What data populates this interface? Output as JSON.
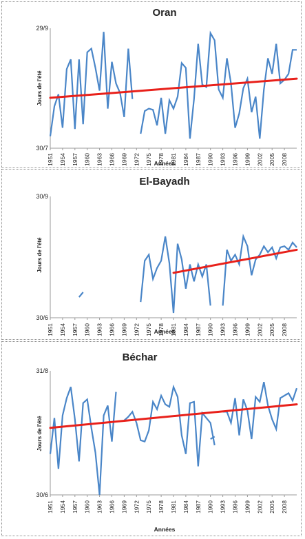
{
  "chart_data": [
    {
      "type": "line",
      "title": "Oran",
      "ylabel": "Jours de l'été",
      "xlabel": "Années",
      "y_ticks": [
        "29/9",
        "30/7"
      ],
      "ylim": [
        0,
        100
      ],
      "x_ticks": [
        "1951",
        "1954",
        "1957",
        "1960",
        "1963",
        "1966",
        "1969",
        "1972",
        "1975",
        "1978",
        "1981",
        "1984",
        "1987",
        "1990",
        "1993",
        "1996",
        "1999",
        "2002",
        "2005",
        "2008"
      ],
      "x_range": [
        1951,
        2011
      ],
      "colors": {
        "series": "#4a86c8",
        "trend": "#e8201a"
      },
      "series": [
        {
          "x": [
            1951,
            1952,
            1953,
            1954,
            1955,
            1956,
            1957,
            1958,
            1959,
            1960,
            1961,
            1962,
            1963,
            1964,
            1965,
            1966,
            1967,
            1968,
            1969,
            1970
          ],
          "values": [
            10,
            35,
            45,
            17,
            66,
            74,
            16,
            74,
            20,
            80,
            83,
            67,
            48,
            97,
            33,
            72,
            54,
            46,
            26,
            83
          ]
        },
        {
          "x": [
            1970,
            1971
          ],
          "values": [
            83,
            41
          ]
        },
        {
          "x": [
            1973,
            1974,
            1975,
            1976,
            1977,
            1978,
            1979,
            1980,
            1981,
            1982,
            1983,
            1984,
            1985,
            1986,
            1987,
            1988,
            1989,
            1990,
            1991,
            1992,
            1993,
            1994,
            1995,
            1996,
            1997,
            1998,
            1999,
            2000,
            2001,
            2002,
            2003,
            2004,
            2005,
            2006,
            2007,
            2008,
            2009,
            2010,
            2011
          ],
          "values": [
            12,
            31,
            33,
            32,
            19,
            42,
            12,
            40,
            33,
            43,
            71,
            67,
            8,
            41,
            87,
            53,
            51,
            96,
            90,
            49,
            42,
            75,
            54,
            17,
            29,
            50,
            58,
            30,
            43,
            8,
            49,
            75,
            62,
            87,
            54,
            57,
            62,
            82,
            82
          ]
        }
      ],
      "trend": {
        "x": [
          1951,
          2011
        ],
        "values": [
          42,
          58
        ]
      }
    },
    {
      "type": "line",
      "title": "El-Bayadh",
      "ylabel": "Jours de l'été",
      "xlabel": "Années",
      "y_ticks": [
        "30/9",
        "30/6"
      ],
      "ylim": [
        0,
        100
      ],
      "x_ticks": [
        "1951",
        "1954",
        "1957",
        "1960",
        "1963",
        "1966",
        "1969",
        "1972",
        "1975",
        "1978",
        "1981",
        "1984",
        "1987",
        "1990",
        "1993",
        "1996",
        "1999",
        "2002",
        "2005",
        "2008"
      ],
      "x_range": [
        1951,
        2011
      ],
      "colors": {
        "series": "#4a86c8",
        "trend": "#e8201a"
      },
      "series": [
        {
          "x": [
            1958,
            1959
          ],
          "values": [
            17,
            21
          ]
        },
        {
          "x": [
            1973,
            1974,
            1975,
            1976,
            1977,
            1978,
            1979,
            1980,
            1981,
            1982,
            1983,
            1984,
            1985,
            1986,
            1987,
            1988,
            1989,
            1990
          ],
          "values": [
            13,
            47,
            52,
            32,
            41,
            47,
            67,
            45,
            4,
            61,
            48,
            24,
            44,
            30,
            44,
            34,
            44,
            10
          ]
        },
        {
          "x": [
            1993,
            1994,
            1995,
            1996,
            1997,
            1998,
            1999,
            2000,
            2001,
            2002,
            2003,
            2004,
            2005,
            2006,
            2007,
            2008,
            2009,
            2010,
            2011
          ],
          "values": [
            10,
            56,
            47,
            52,
            44,
            67,
            59,
            35,
            48,
            52,
            59,
            54,
            58,
            49,
            58,
            59,
            56,
            62,
            58
          ]
        }
      ],
      "trend": {
        "x": [
          1981,
          2011
        ],
        "values": [
          37,
          56
        ]
      }
    },
    {
      "type": "line",
      "title": "Béchar",
      "ylabel": "Jours de l'été",
      "xlabel": "Années",
      "y_ticks": [
        "31/8",
        "30/6"
      ],
      "ylim": [
        0,
        100
      ],
      "x_ticks": [
        "1951",
        "1954",
        "1957",
        "1960",
        "1963",
        "1966",
        "1969",
        "1972",
        "1975",
        "1978",
        "1981",
        "1984",
        "1987",
        "1990",
        "1993",
        "1996",
        "1999",
        "2002",
        "2005",
        "2008"
      ],
      "x_range": [
        1951,
        2011
      ],
      "colors": {
        "series": "#4a86c8",
        "trend": "#e8201a"
      },
      "series": [
        {
          "x": [
            1951,
            1952,
            1953,
            1954,
            1955,
            1956,
            1957,
            1958,
            1959,
            1960,
            1961,
            1962,
            1963,
            1964,
            1965,
            1966,
            1967
          ],
          "values": [
            33,
            62,
            21,
            64,
            78,
            87,
            61,
            27,
            74,
            77,
            54,
            34,
            0,
            64,
            72,
            43,
            83
          ]
        },
        {
          "x": [
            1969,
            1970,
            1971,
            1972,
            1973,
            1974,
            1975,
            1976,
            1977,
            1978,
            1979,
            1980,
            1981,
            1982,
            1983,
            1984,
            1985,
            1986,
            1987,
            1988,
            1989,
            1990,
            1991
          ],
          "values": [
            60,
            63,
            67,
            58,
            44,
            43,
            52,
            75,
            69,
            80,
            73,
            71,
            87,
            79,
            48,
            33,
            74,
            75,
            23,
            66,
            62,
            58,
            40
          ]
        },
        {
          "x": [
            1990,
            1991
          ],
          "values": [
            45,
            47
          ]
        },
        {
          "x": [
            1993,
            1994,
            1995,
            1996,
            1997,
            1998,
            1999,
            2000,
            2001,
            2002,
            2003,
            2004,
            2005,
            2006,
            2007,
            2008,
            2009,
            2010,
            2011
          ],
          "values": [
            67,
            67,
            58,
            78,
            48,
            77,
            68,
            45,
            79,
            75,
            91,
            72,
            61,
            53,
            78,
            80,
            82,
            76,
            86
          ]
        }
      ],
      "trend": {
        "x": [
          1951,
          2011
        ],
        "values": [
          54,
          73
        ]
      }
    }
  ]
}
